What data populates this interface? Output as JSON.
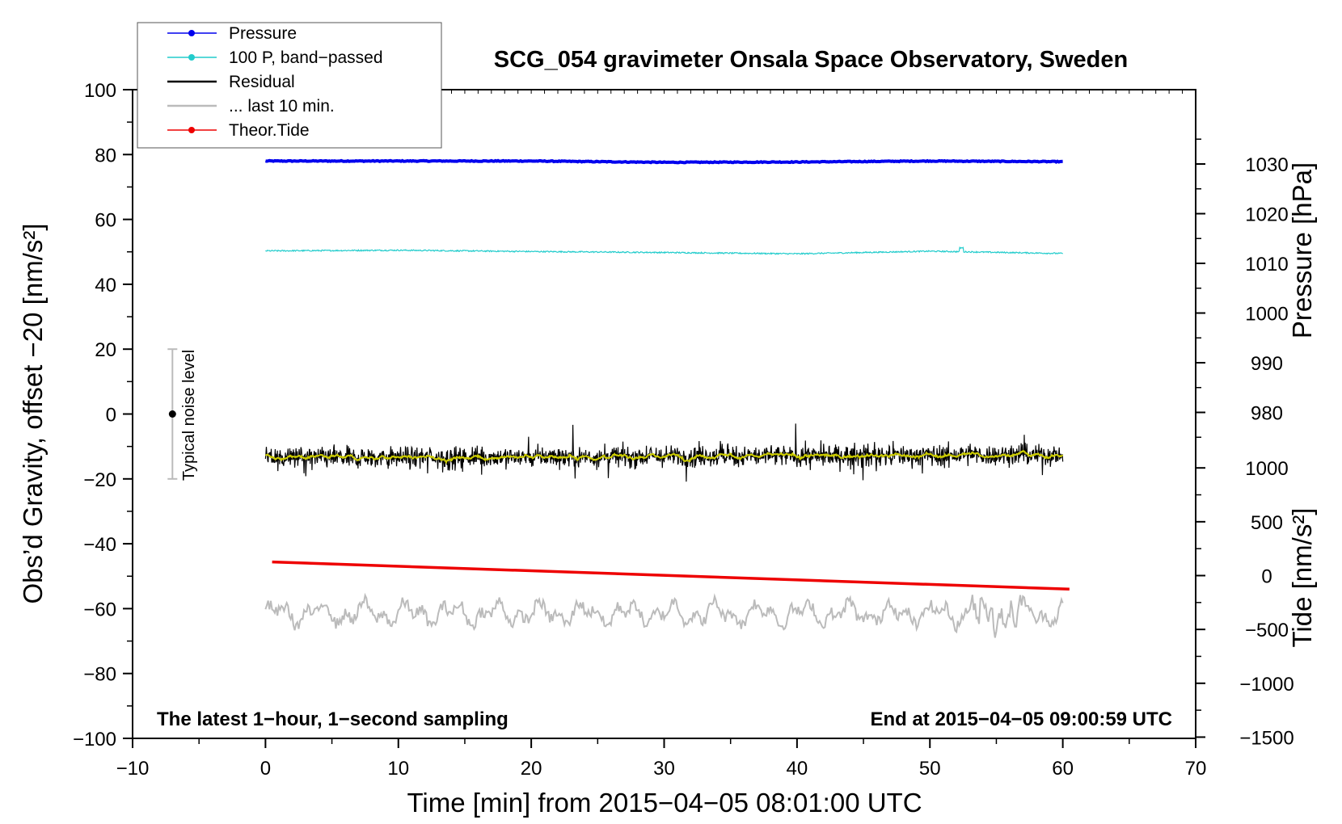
{
  "chart_data": {
    "type": "line",
    "title": "SCG_054 gravimeter Onsala Space Observatory, Sweden",
    "xlabel": "Time [min] from 2015−04−05 08:01:00 UTC",
    "ylabel_left": "Obs’d Gravity, offset −20 [nm/s²]",
    "ylabel_right_top": "Pressure [hPa]",
    "ylabel_right_bottom": "Tide [nm/s²]",
    "xlim": [
      -10,
      70
    ],
    "ylim": [
      -100,
      100
    ],
    "x_ticks": [
      "−10",
      "0",
      "10",
      "20",
      "30",
      "40",
      "50",
      "60",
      "70"
    ],
    "y_ticks": [
      "−100",
      "−80",
      "−60",
      "−40",
      "−20",
      "0",
      "20",
      "40",
      "60",
      "80",
      "100"
    ],
    "pressure_ticks": [
      "980",
      "990",
      "1000",
      "1010",
      "1020",
      "1030"
    ],
    "tide_ticks": [
      "−1500",
      "−1000",
      "−500",
      "0",
      "500",
      "1000"
    ],
    "grid": false,
    "legend_position": "top-left",
    "legend": [
      {
        "label": "Pressure",
        "color": "#0000ee",
        "marker": true
      },
      {
        "label": "100 P, band−passed",
        "color": "#22cccc",
        "marker": true
      },
      {
        "label": "Residual",
        "color": "#000000",
        "marker": false
      },
      {
        "label": "... last 10 min.",
        "color": "#bbbbbb",
        "marker": false
      },
      {
        "label": "Theor.Tide",
        "color": "#ee0000",
        "marker": true
      }
    ],
    "series": [
      {
        "name": "Pressure",
        "color": "#0000ee",
        "x": [
          0,
          10,
          20,
          30,
          40,
          50,
          60
        ],
        "y": [
          78,
          78,
          78,
          77.6,
          77.7,
          78,
          77.8
        ]
      },
      {
        "name": "100 P, band−passed",
        "color": "#22cccc",
        "x": [
          0,
          10,
          20,
          30,
          40,
          50,
          60
        ],
        "y": [
          50.3,
          50.5,
          50.1,
          49.8,
          49.4,
          50.2,
          49.5
        ]
      },
      {
        "name": "Residual",
        "color": "#000000",
        "x_range": [
          0,
          60
        ],
        "mean": -13.5,
        "amplitude": 5
      },
      {
        "name": "... last 10 min.",
        "color": "#bbbbbb",
        "x_range": [
          0,
          60
        ],
        "mean": -61.5,
        "amplitude": 4
      },
      {
        "name": "Theor.Tide",
        "color": "#ee0000",
        "x": [
          0.5,
          60.5
        ],
        "y": [
          -45.6,
          -54
        ]
      }
    ],
    "smoothed_residual_color": "#cccc00",
    "noise_level": {
      "label": "Typical noise level",
      "x": -7,
      "y": 0,
      "range": [
        -20,
        20
      ]
    },
    "annotations": {
      "left": "The latest 1−hour, 1−second sampling",
      "right": "End at 2015−04−05 09:00:59 UTC"
    }
  }
}
